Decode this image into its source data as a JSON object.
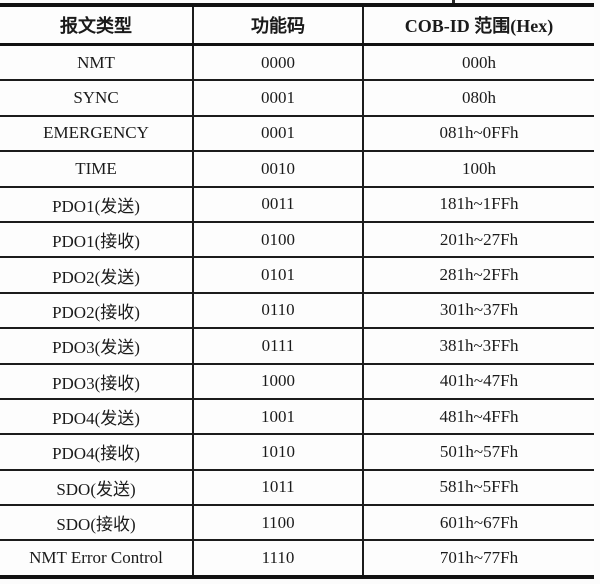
{
  "page": {
    "background_color": "#fdfdfd",
    "text_color": "#1a1a1a",
    "border_color": "#111111"
  },
  "table": {
    "headers": [
      "报文类型",
      "功能码",
      "COB-ID 范围(Hex)"
    ],
    "rows": [
      {
        "type": "NMT",
        "code": "0000",
        "cob_id": "000h"
      },
      {
        "type": "SYNC",
        "code": "0001",
        "cob_id": "080h"
      },
      {
        "type": "EMERGENCY",
        "code": "0001",
        "cob_id": "081h~0FFh"
      },
      {
        "type": "TIME",
        "code": "0010",
        "cob_id": "100h"
      },
      {
        "type": "PDO1(发送)",
        "code": "0011",
        "cob_id": "181h~1FFh"
      },
      {
        "type": "PDO1(接收)",
        "code": "0100",
        "cob_id": "201h~27Fh"
      },
      {
        "type": "PDO2(发送)",
        "code": "0101",
        "cob_id": "281h~2FFh"
      },
      {
        "type": "PDO2(接收)",
        "code": "0110",
        "cob_id": "301h~37Fh"
      },
      {
        "type": "PDO3(发送)",
        "code": "0111",
        "cob_id": "381h~3FFh"
      },
      {
        "type": "PDO3(接收)",
        "code": "1000",
        "cob_id": "401h~47Fh"
      },
      {
        "type": "PDO4(发送)",
        "code": "1001",
        "cob_id": "481h~4FFh"
      },
      {
        "type": "PDO4(接收)",
        "code": "1010",
        "cob_id": "501h~57Fh"
      },
      {
        "type": "SDO(发送)",
        "code": "1011",
        "cob_id": "581h~5FFh"
      },
      {
        "type": "SDO(接收)",
        "code": "1100",
        "cob_id": "601h~67Fh"
      },
      {
        "type": "NMT Error Control",
        "code": "1110",
        "cob_id": "701h~77Fh"
      }
    ]
  }
}
